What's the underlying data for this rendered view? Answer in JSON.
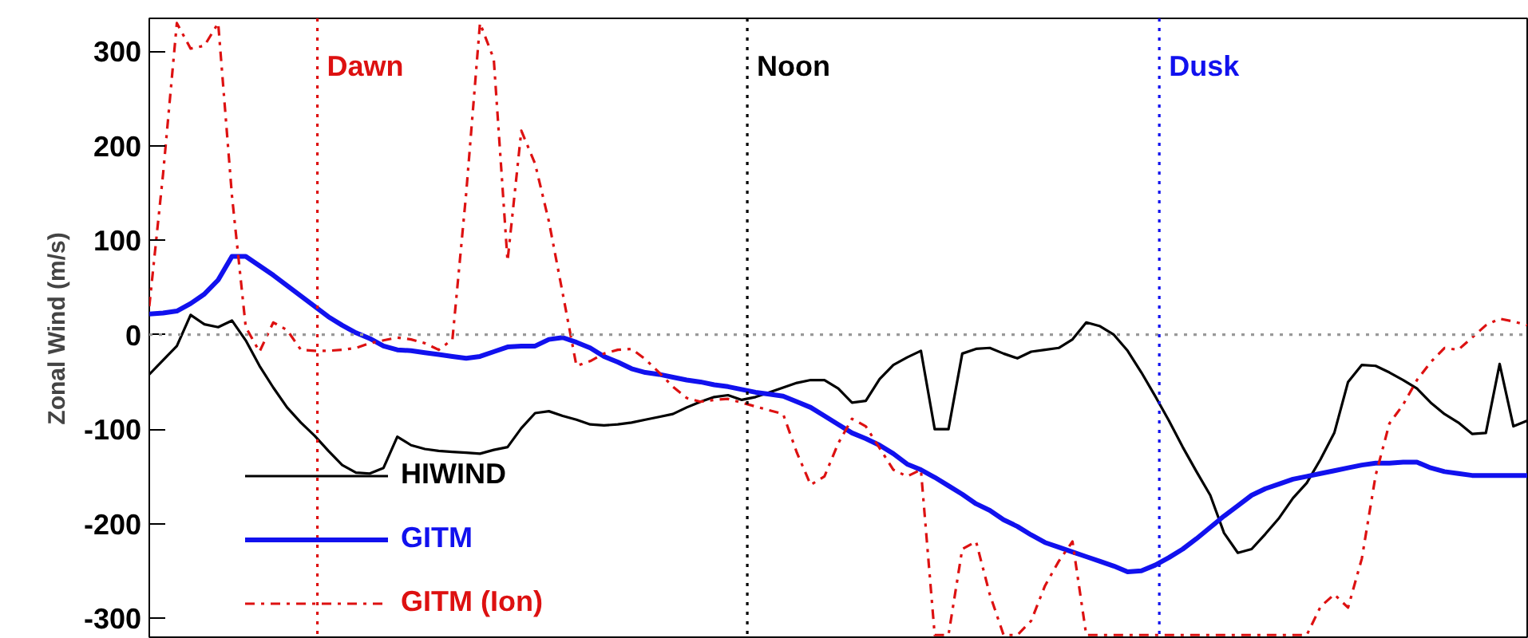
{
  "chart_data": {
    "type": "line",
    "ylabel": "Zonal Wind (m/s)",
    "categories": [
      null,
      null,
      null,
      null,
      null,
      null,
      null,
      null,
      null,
      null,
      null,
      null,
      null,
      null,
      null,
      null,
      null,
      null,
      null,
      null,
      null,
      null,
      null,
      null,
      null,
      null,
      null,
      null,
      null,
      null,
      null,
      null,
      null,
      null,
      null,
      null,
      null,
      null,
      null,
      null,
      null,
      null,
      null,
      null,
      null,
      null,
      null,
      null,
      null,
      null,
      null,
      null,
      null,
      null,
      null,
      null,
      null,
      null,
      null,
      null,
      null,
      null,
      null,
      null,
      null,
      null,
      null,
      null,
      null,
      null,
      null,
      null,
      null,
      null,
      null,
      null,
      null,
      null,
      null,
      null,
      null,
      null,
      null,
      null,
      null,
      null,
      null,
      null,
      null,
      null,
      null,
      null,
      null,
      null,
      null,
      null,
      null,
      null,
      null,
      null,
      null
    ],
    "ylim": [
      -322,
      335
    ],
    "yticks": [
      -300,
      -200,
      -100,
      0,
      100,
      200,
      300
    ],
    "tick_labels": "y",
    "legend": "bottom left",
    "annotations": [
      "Dawn",
      "Noon",
      "Dusk"
    ],
    "ref_lines": [
      {
        "axis": "y",
        "value": 0,
        "color": "#999999",
        "line_style": "dotted"
      }
    ],
    "series": [
      {
        "name": "HIWIND",
        "color": "#000000",
        "line_style": "solid",
        "values": [
          -42,
          -27,
          -12,
          21,
          11,
          8,
          15,
          -6,
          -33,
          -56,
          -77,
          -93,
          -107,
          -123,
          -138,
          -146,
          -147,
          -141,
          -108,
          -117,
          -121,
          -123,
          -124,
          -125,
          -126,
          -122,
          -119,
          -99,
          -83,
          -81,
          -86,
          -90,
          -95,
          -96,
          -95,
          -93,
          -90,
          -87,
          -84,
          -77,
          -71,
          -66,
          -64,
          -69,
          -66,
          -61,
          -56,
          -51,
          -48,
          -48,
          -57,
          -72,
          -70,
          -47,
          -32,
          -24,
          -17,
          -100,
          -100,
          -20,
          -15,
          -14,
          -20,
          -25,
          -18,
          -16,
          -14,
          -5,
          13,
          9,
          0,
          -17,
          -40,
          -65,
          -91,
          -119,
          -145,
          -170,
          -210,
          -231,
          -227,
          -211,
          -194,
          -173,
          -157,
          -132,
          -104,
          -50,
          -32,
          -33,
          -40,
          -48,
          -57,
          -72,
          -84,
          -93,
          -105,
          -104,
          -31,
          -97,
          -91
        ]
      },
      {
        "name": "GITM",
        "color": "#1111ee",
        "line_style": "solid",
        "values": [
          22,
          23,
          25,
          33,
          43,
          58,
          83,
          83,
          73,
          63,
          52,
          41,
          30,
          19,
          10,
          2,
          -4,
          -12,
          -16,
          -17,
          -19,
          -21,
          -23,
          -25,
          -23,
          -18,
          -13,
          -12,
          -12,
          -5,
          -3,
          -8,
          -14,
          -23,
          -29,
          -36,
          -40,
          -42,
          -45,
          -48,
          -50,
          -53,
          -55,
          -58,
          -61,
          -63,
          -65,
          -71,
          -77,
          -86,
          -95,
          -104,
          -110,
          -117,
          -126,
          -137,
          -143,
          -151,
          -160,
          -169,
          -179,
          -186,
          -196,
          -203,
          -212,
          -220,
          -225,
          -230,
          -235,
          -240,
          -245,
          -251,
          -250,
          -244,
          -236,
          -227,
          -216,
          -204,
          -192,
          -181,
          -170,
          -163,
          -158,
          -153,
          -150,
          -147,
          -144,
          -141,
          -138,
          -136,
          -136,
          -135,
          -135,
          -141,
          -145,
          -147,
          -149,
          -149,
          -149,
          -149,
          -149
        ]
      },
      {
        "name": "GITM (Ion)",
        "color": "#dd1111",
        "line_style": "dashdot",
        "values": [
          30,
          170,
          330,
          303,
          306,
          330,
          147,
          8,
          -18,
          13,
          5,
          -16,
          -17,
          -17,
          -16,
          -14,
          -9,
          -6,
          -3,
          -5,
          -9,
          -16,
          -5,
          150,
          330,
          292,
          78,
          216,
          181,
          120,
          44,
          -33,
          -28,
          -20,
          -16,
          -15,
          -26,
          -40,
          -55,
          -67,
          -71,
          -69,
          -68,
          -72,
          -76,
          -80,
          -84,
          -125,
          -159,
          -150,
          -115,
          -89,
          -97,
          -120,
          -143,
          -150,
          -143,
          -318,
          -318,
          -227,
          -219,
          -275,
          -318,
          -318,
          -303,
          -266,
          -240,
          -219,
          -318,
          -318,
          -318,
          -318,
          -318,
          -318,
          -318,
          -318,
          -318,
          -318,
          -318,
          -318,
          -318,
          -318,
          -318,
          -318,
          -318,
          -288,
          -275,
          -289,
          -237,
          -149,
          -94,
          -74,
          -48,
          -29,
          -14,
          -16,
          -3,
          10,
          17,
          14,
          10
        ]
      }
    ]
  }
}
